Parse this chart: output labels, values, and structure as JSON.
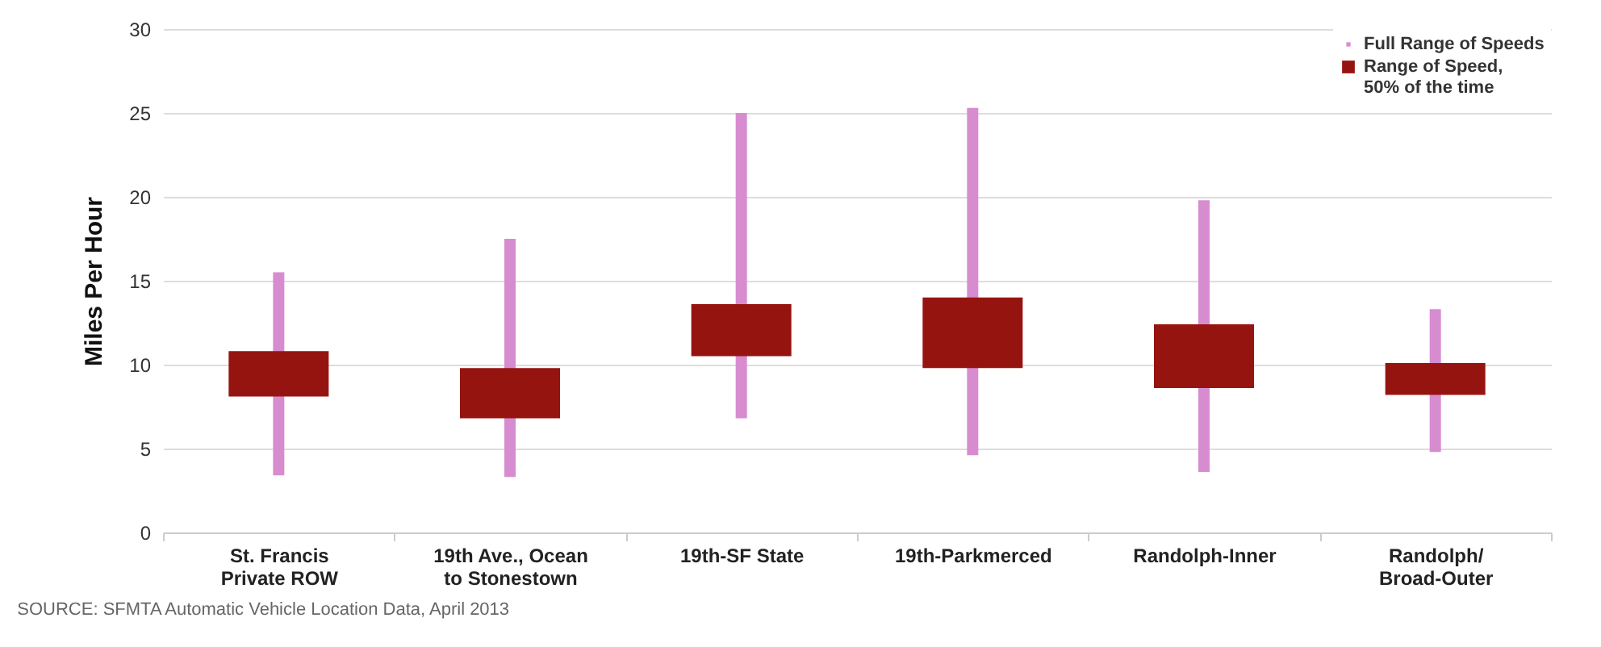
{
  "chart_data": {
    "type": "bar",
    "ylabel": "Miles Per Hour",
    "categories": [
      "St. Francis\nPrivate ROW",
      "19th Ave., Ocean\nto Stonestown",
      "19th-SF State",
      "19th-Parkmerced",
      "Randolph-Inner",
      "Randolph/\nBroad-Outer"
    ],
    "series": [
      {
        "name": "Full Range of Speeds",
        "color": "#d88cd0",
        "base": [
          3.4,
          3.3,
          6.8,
          4.6,
          3.6,
          4.8
        ],
        "values": [
          12.1,
          14.2,
          18.2,
          20.7,
          16.2,
          8.5
        ]
      },
      {
        "name": "Range of Speed,\n50% of the time",
        "color": "#961410",
        "base": [
          8.1,
          6.8,
          10.5,
          9.8,
          8.6,
          8.2
        ],
        "values": [
          2.7,
          3.0,
          3.1,
          4.2,
          3.8,
          1.9
        ]
      }
    ],
    "ylim": [
      0,
      30
    ],
    "yticks": [
      0,
      5,
      10,
      15,
      20,
      25,
      30
    ],
    "grid": "y",
    "legend": "top right",
    "annotations": [
      "SOURCE: SFMTA Automatic Vehicle Location Data, April 2013"
    ]
  }
}
